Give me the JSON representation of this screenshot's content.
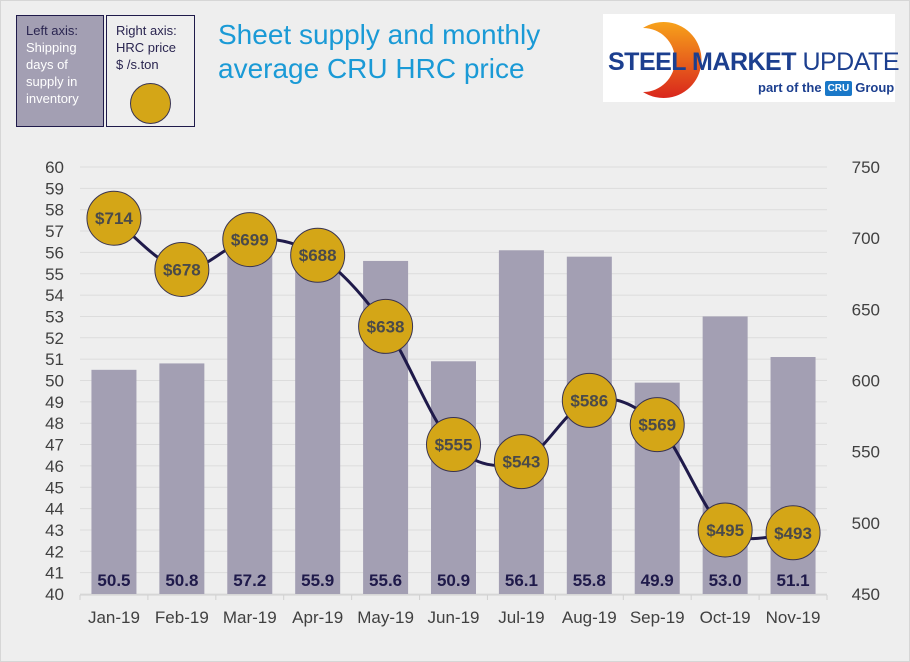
{
  "legend": {
    "left": {
      "heading": "Left axis:",
      "lines": [
        "Shipping",
        "days of",
        "supply in",
        "inventory"
      ]
    },
    "right": {
      "heading": "Right axis:",
      "lines": [
        "HRC price",
        "$ /s.ton"
      ]
    }
  },
  "logo": {
    "brand_bold": "STEEL MARKET",
    "brand_light": "UPDATE",
    "tag_prefix": "part of the",
    "tag_badge": "CRU",
    "tag_suffix": "Group"
  },
  "colors": {
    "bar": "#a39fb3",
    "bubble": "#d4a617",
    "line": "#1f1a4a",
    "title": "#1a9ad6"
  },
  "chart_data": {
    "type": "bar",
    "title": "Sheet supply and monthly average CRU HRC price",
    "categories": [
      "Jan-19",
      "Feb-19",
      "Mar-19",
      "Apr-19",
      "May-19",
      "Jun-19",
      "Jul-19",
      "Aug-19",
      "Sep-19",
      "Oct-19",
      "Nov-19"
    ],
    "series": [
      {
        "name": "Shipping days of supply in inventory",
        "type": "bar",
        "axis": "left",
        "values": [
          50.5,
          50.8,
          57.2,
          55.9,
          55.6,
          50.9,
          56.1,
          55.8,
          49.9,
          53.0,
          51.1
        ],
        "labels": [
          "50.5",
          "50.8",
          "57.2",
          "55.9",
          "55.6",
          "50.9",
          "56.1",
          "55.8",
          "49.9",
          "53.0",
          "51.1"
        ]
      },
      {
        "name": "HRC price $ /s.ton",
        "type": "line",
        "axis": "right",
        "values": [
          714,
          678,
          699,
          688,
          638,
          555,
          543,
          586,
          569,
          495,
          493
        ],
        "labels": [
          "$714",
          "$678",
          "$699",
          "$688",
          "$638",
          "$555",
          "$543",
          "$586",
          "$569",
          "$495",
          "$493"
        ]
      }
    ],
    "left_axis": {
      "ylim": [
        40,
        60
      ],
      "ticks": [
        40,
        41,
        42,
        43,
        44,
        45,
        46,
        47,
        48,
        49,
        50,
        51,
        52,
        53,
        54,
        55,
        56,
        57,
        58,
        59,
        60
      ]
    },
    "right_axis": {
      "ylim": [
        450,
        750
      ],
      "ticks": [
        450,
        500,
        550,
        600,
        650,
        700,
        750
      ]
    },
    "xlabel": "",
    "ylabel": "",
    "grid": true,
    "legend": "top-left"
  }
}
